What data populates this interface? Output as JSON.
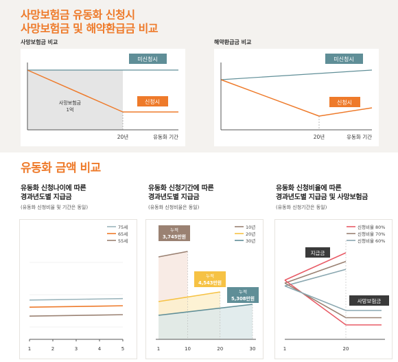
{
  "header": {
    "title_line1": "사망보험금 유동화 신청시",
    "title_line2": "사망보험금 및 해약환급금 비교"
  },
  "section2": {
    "title": "유동화 금액 비교"
  },
  "colors": {
    "accent": "#ee7a2a",
    "slate": "#5f8e97",
    "dark": "#3a3a3a",
    "gray": "#bdbdbd"
  },
  "chart_data": [
    {
      "type": "line",
      "subtitle": "사망보험금 비교",
      "x_ticks": [
        "20년"
      ],
      "x_axis_label": "유동화 기간",
      "series": [
        {
          "name": "미신청시",
          "values": [
            100,
            100
          ]
        },
        {
          "name": "신청시",
          "values": [
            100,
            40
          ]
        }
      ],
      "annotation": {
        "text_line1": "사망보험금",
        "text_line2": "1억"
      }
    },
    {
      "type": "line",
      "subtitle": "해약환급금 비교",
      "x_ticks": [
        "20년"
      ],
      "x_axis_label": "유동화 기간",
      "series": [
        {
          "name": "미신청시",
          "values": [
            70,
            100
          ]
        },
        {
          "name": "신청시",
          "values": [
            70,
            20,
            30
          ]
        }
      ]
    },
    {
      "type": "line",
      "title_line1": "유동화 신청나이에 따른",
      "title_line2": "경과년도별 지급금",
      "note": "(유동화 신청비율 및 기간은 동일)",
      "x": [
        1,
        2,
        3,
        4,
        5
      ],
      "x_ticks": [
        "1",
        "2",
        "3",
        "4",
        "5"
      ],
      "series": [
        {
          "name": "75세",
          "values": [
            110,
            111,
            112,
            113,
            114
          ]
        },
        {
          "name": "65세",
          "values": [
            90,
            91,
            92,
            93,
            94
          ]
        },
        {
          "name": "55세",
          "values": [
            65,
            66,
            67,
            68,
            69
          ]
        }
      ]
    },
    {
      "type": "area",
      "title_line1": "유동화 신청기간에 따른",
      "title_line2": "경과년도별 지급금",
      "note": "(유동화 신청비율은 동일)",
      "x_ticks": [
        "1",
        "10",
        "20",
        "30"
      ],
      "legend": [
        "10년",
        "20년",
        "30년"
      ],
      "series": [
        {
          "name": "10년",
          "x": [
            1,
            10
          ],
          "values": [
            120,
            128
          ],
          "label_line1": "누적",
          "label_line2": "3,745만원"
        },
        {
          "name": "20년",
          "x": [
            1,
            20
          ],
          "values": [
            55,
            69
          ],
          "label_line1": "누적",
          "label_line2": "4,543만원"
        },
        {
          "name": "30년",
          "x": [
            1,
            30
          ],
          "values": [
            35,
            51
          ],
          "label_line1": "누적",
          "label_line2": "5,308만원"
        }
      ]
    },
    {
      "type": "line",
      "title_line1": "유동화 신청비율에 따른",
      "title_line2": "경과년도별 지급금 및 사망보험금",
      "note": "(유동화 신청기간은 동일)",
      "x_ticks": [
        "1",
        "20"
      ],
      "legend": [
        "신청비율 80%",
        "신청비율 70%",
        "신청비율 60%"
      ],
      "labels": {
        "payout": "지급금",
        "death_benefit": "사망보험금"
      },
      "payout_series": [
        {
          "name": "신청비율 80%",
          "values": [
            82,
            120
          ]
        },
        {
          "name": "신청비율 70%",
          "values": [
            78,
            108
          ]
        },
        {
          "name": "신청비율 60%",
          "values": [
            74,
            97
          ]
        }
      ],
      "death_benefit_series": [
        {
          "name": "신청비율 80%",
          "values": [
            82,
            20
          ]
        },
        {
          "name": "신청비율 70%",
          "values": [
            78,
            30
          ]
        },
        {
          "name": "신청비율 60%",
          "values": [
            74,
            40
          ]
        }
      ]
    }
  ]
}
